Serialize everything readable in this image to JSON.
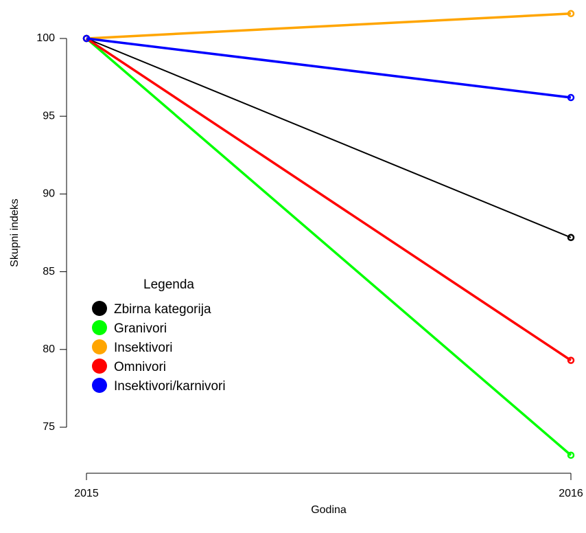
{
  "chart_data": {
    "type": "line",
    "x": [
      2015,
      2016
    ],
    "xticks": [
      "2015",
      "2016"
    ],
    "yticks": [
      75,
      80,
      85,
      90,
      95,
      100
    ],
    "ylim": [
      72.3,
      102.4
    ],
    "xlabel": "Godina",
    "ylabel": "Skupni indeks",
    "grid": false,
    "legend_title": "Legenda",
    "legend_position": "left-middle",
    "series": [
      {
        "name": "Zbirna kategorija",
        "color": "#000000",
        "values": [
          100,
          87.2
        ]
      },
      {
        "name": "Granivori",
        "color": "#00ff00",
        "values": [
          100,
          73.2
        ]
      },
      {
        "name": "Insektivori",
        "color": "#ffa500",
        "values": [
          100,
          101.6
        ]
      },
      {
        "name": "Omnivori",
        "color": "#ff0000",
        "values": [
          100,
          79.3
        ]
      },
      {
        "name": "Insektivori/karnivori",
        "color": "#0000ff",
        "values": [
          100,
          96.2
        ]
      }
    ]
  }
}
